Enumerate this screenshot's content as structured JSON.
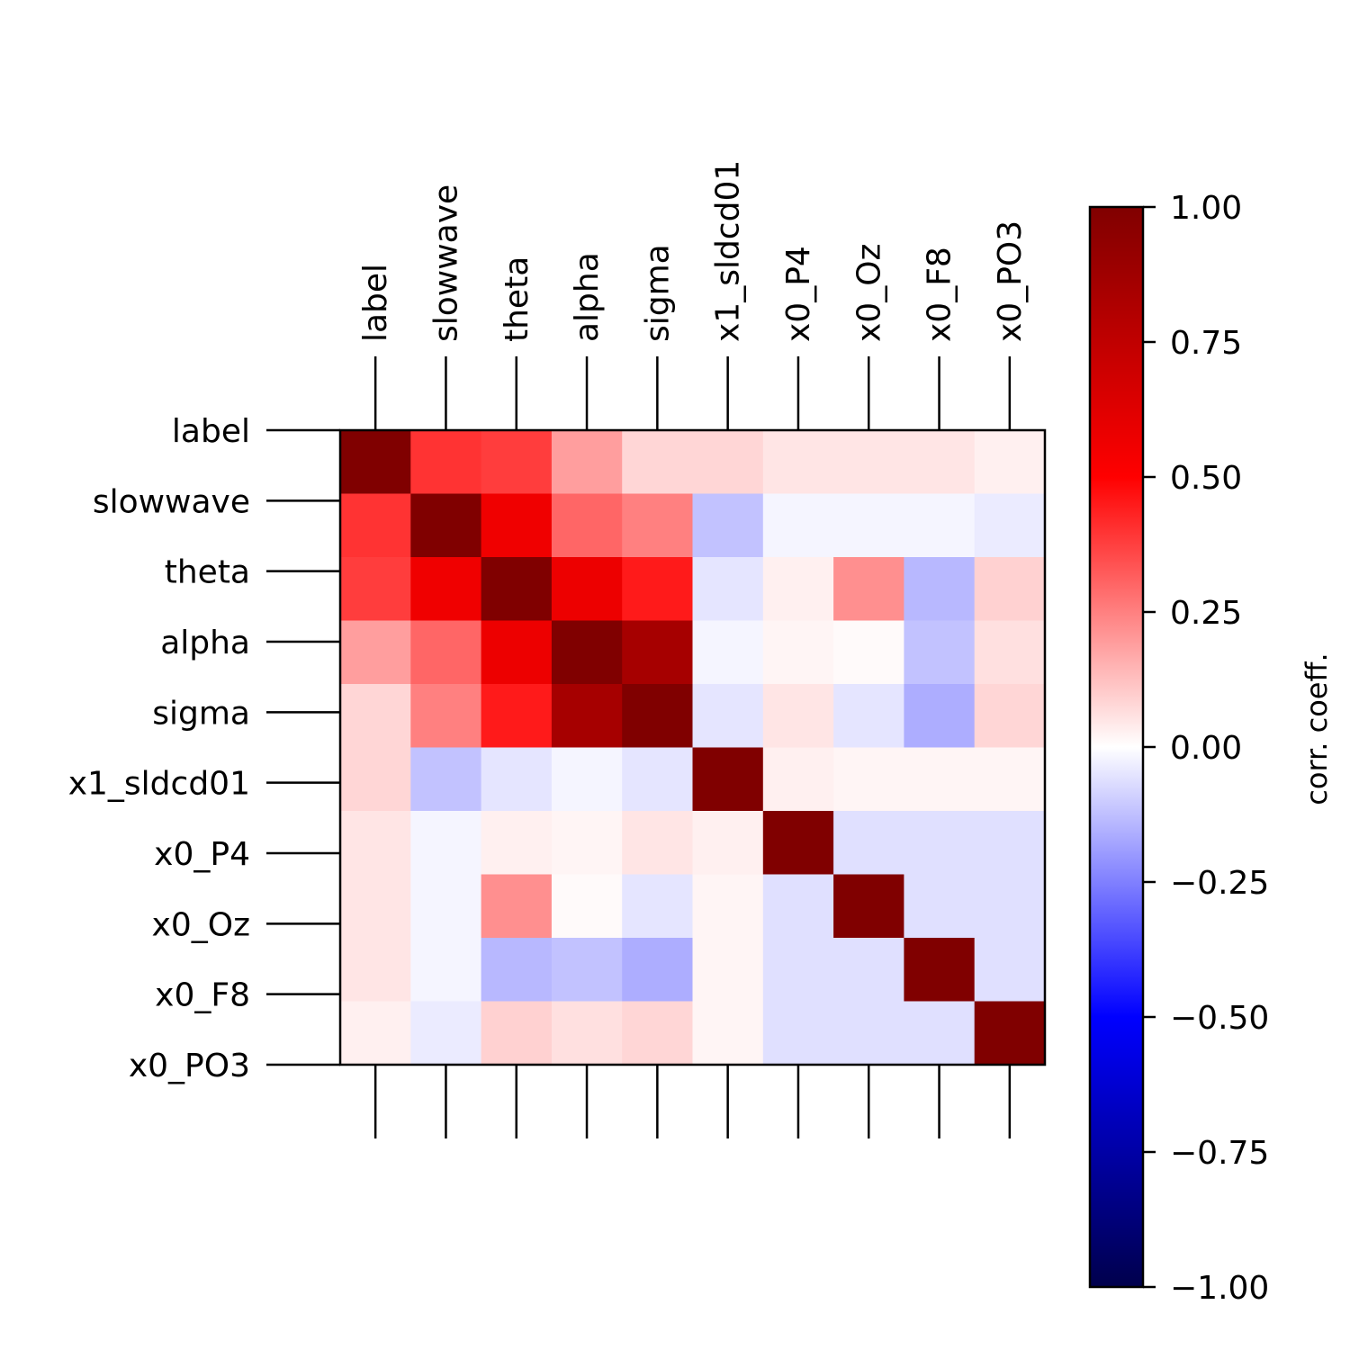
{
  "chart_data": {
    "type": "heatmap",
    "title": "",
    "categories": [
      "label",
      "slowwave",
      "theta",
      "alpha",
      "sigma",
      "x1_sldcd01",
      "x0_P4",
      "x0_Oz",
      "x0_F8",
      "x0_PO3"
    ],
    "matrix": [
      [
        1.0,
        0.4,
        0.38,
        0.19,
        0.08,
        0.08,
        0.05,
        0.05,
        0.05,
        0.03
      ],
      [
        0.4,
        1.0,
        0.56,
        0.3,
        0.25,
        -0.12,
        -0.02,
        -0.02,
        -0.02,
        -0.04
      ],
      [
        0.38,
        0.56,
        1.0,
        0.57,
        0.45,
        -0.05,
        0.03,
        0.22,
        -0.14,
        0.09
      ],
      [
        0.19,
        0.3,
        0.57,
        1.0,
        0.85,
        -0.02,
        0.02,
        0.01,
        -0.12,
        0.06
      ],
      [
        0.08,
        0.25,
        0.45,
        0.85,
        1.0,
        -0.05,
        0.05,
        -0.05,
        -0.16,
        0.08
      ],
      [
        0.08,
        -0.12,
        -0.05,
        -0.02,
        -0.05,
        1.0,
        0.03,
        0.02,
        0.02,
        0.02
      ],
      [
        0.05,
        -0.02,
        0.03,
        0.02,
        0.05,
        0.03,
        1.0,
        -0.06,
        -0.06,
        -0.06
      ],
      [
        0.05,
        -0.02,
        0.22,
        0.01,
        -0.05,
        0.02,
        -0.06,
        1.0,
        -0.06,
        -0.06
      ],
      [
        0.05,
        -0.02,
        -0.14,
        -0.12,
        -0.16,
        0.02,
        -0.06,
        -0.06,
        1.0,
        -0.06
      ],
      [
        0.03,
        -0.04,
        0.09,
        0.06,
        0.08,
        0.02,
        -0.06,
        -0.06,
        -0.06,
        1.0
      ]
    ],
    "colormap": "seismic",
    "vmin": -1.0,
    "vmax": 1.0,
    "colorbar": {
      "label": "corr. coeff.",
      "ticks": [
        1.0,
        0.75,
        0.5,
        0.25,
        0.0,
        -0.25,
        -0.5,
        -0.75,
        -1.0
      ],
      "tick_labels": [
        "1.00",
        "0.75",
        "0.50",
        "0.25",
        "0.00",
        "−0.25",
        "−0.50",
        "−0.75",
        "−1.00"
      ]
    },
    "grid": false,
    "x_tick_position": "top"
  }
}
